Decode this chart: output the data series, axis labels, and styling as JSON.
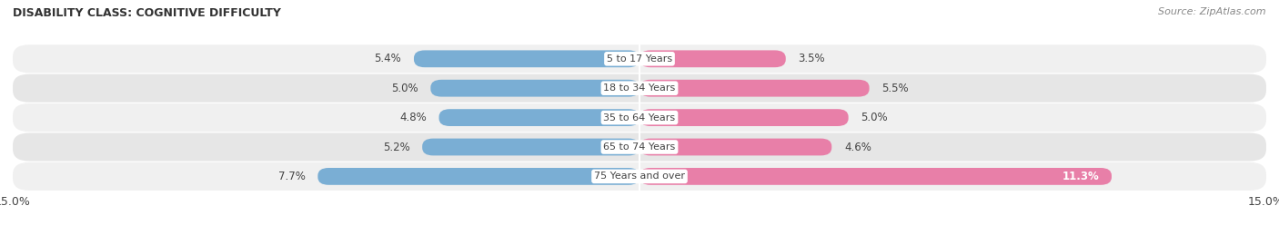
{
  "title": "DISABILITY CLASS: COGNITIVE DIFFICULTY",
  "source": "Source: ZipAtlas.com",
  "categories": [
    "5 to 17 Years",
    "18 to 34 Years",
    "35 to 64 Years",
    "65 to 74 Years",
    "75 Years and over"
  ],
  "male_values": [
    5.4,
    5.0,
    4.8,
    5.2,
    7.7
  ],
  "female_values": [
    3.5,
    5.5,
    5.0,
    4.6,
    11.3
  ],
  "male_color": "#7aaed4",
  "female_color": "#e87fa8",
  "row_bg_color": [
    "#f0f0f0",
    "#e6e6e6",
    "#f0f0f0",
    "#e6e6e6",
    "#f0f0f0"
  ],
  "max_val": 15.0,
  "text_color": "#444444",
  "title_color": "#333333",
  "source_color": "#888888",
  "value_inside_color": "#ffffff",
  "value_outside_color": "#444444"
}
